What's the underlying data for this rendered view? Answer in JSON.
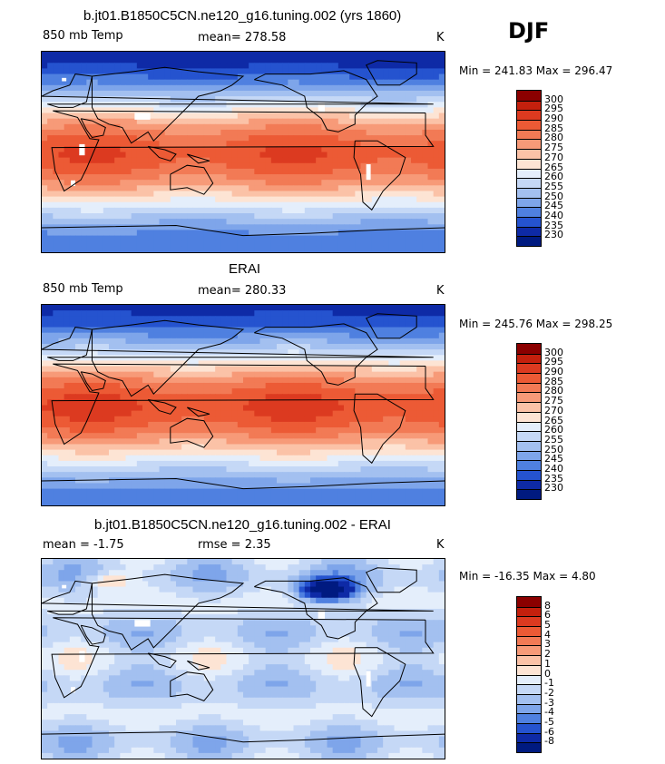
{
  "season": "DJF",
  "panels": [
    {
      "title": "b.jt01.B1850C5CN.ne120_g16.tuning.002 (yrs 1860)",
      "left_label": "850 mb Temp",
      "center_label": "mean= 278.58",
      "unit": "K",
      "minmax": "Min = 241.83 Max = 296.47",
      "kind": "abs",
      "missing": true,
      "colorbar": {
        "labels": [
          "300",
          "295",
          "290",
          "285",
          "280",
          "275",
          "270",
          "265",
          "260",
          "255",
          "250",
          "245",
          "240",
          "235",
          "230"
        ],
        "colors": [
          "#8b0000",
          "#c4200d",
          "#dc3a20",
          "#ec5a35",
          "#f27a55",
          "#f79a78",
          "#fbc2a7",
          "#fde4d4",
          "#e4eefb",
          "#c5d8f6",
          "#a3c0f0",
          "#7ea5ea",
          "#4f80e0",
          "#2553cf",
          "#0e2aa6",
          "#001a80"
        ]
      }
    },
    {
      "title": "ERAI",
      "left_label": "850 mb Temp",
      "center_label": "mean= 280.33",
      "unit": "K",
      "minmax": "Min = 245.76 Max = 298.25",
      "kind": "abs",
      "missing": false,
      "colorbar": {
        "labels": [
          "300",
          "295",
          "290",
          "285",
          "280",
          "275",
          "270",
          "265",
          "260",
          "255",
          "250",
          "245",
          "240",
          "235",
          "230"
        ],
        "colors": [
          "#8b0000",
          "#c4200d",
          "#dc3a20",
          "#ec5a35",
          "#f27a55",
          "#f79a78",
          "#fbc2a7",
          "#fde4d4",
          "#e4eefb",
          "#c5d8f6",
          "#a3c0f0",
          "#7ea5ea",
          "#4f80e0",
          "#2553cf",
          "#0e2aa6",
          "#001a80"
        ]
      }
    },
    {
      "title": "b.jt01.B1850C5CN.ne120_g16.tuning.002 - ERAI",
      "left_label": "mean =   -1.75",
      "center_label": "rmse =    2.35",
      "unit": "K",
      "minmax": "Min = -16.35 Max =   4.80",
      "kind": "diff",
      "missing": true,
      "colorbar": {
        "labels": [
          "8",
          "6",
          "5",
          "4",
          "3",
          "2",
          "1",
          "0",
          "-1",
          "-2",
          "-3",
          "-4",
          "-5",
          "-6",
          "-8"
        ],
        "colors": [
          "#8b0000",
          "#c4200d",
          "#dc3a20",
          "#ec5a35",
          "#f27a55",
          "#f79a78",
          "#fbc2a7",
          "#fde4d4",
          "#e4eefb",
          "#c5d8f6",
          "#a3c0f0",
          "#7ea5ea",
          "#4f80e0",
          "#2553cf",
          "#0e2aa6",
          "#001a80"
        ]
      }
    }
  ]
}
